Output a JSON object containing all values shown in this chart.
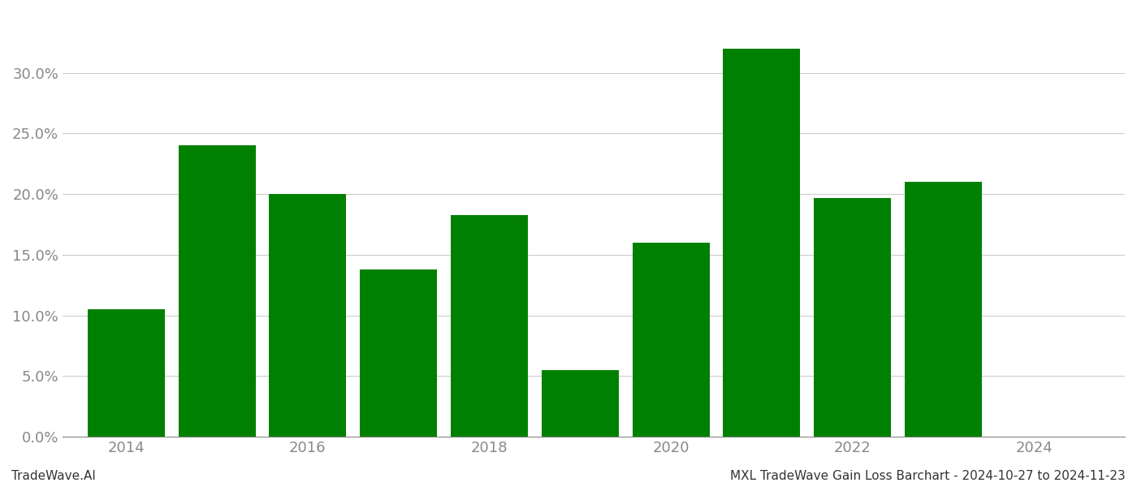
{
  "years": [
    2014,
    2015,
    2016,
    2017,
    2018,
    2019,
    2020,
    2021,
    2022,
    2023,
    2024
  ],
  "values": [
    0.105,
    0.24,
    0.2,
    0.138,
    0.183,
    0.055,
    0.16,
    0.32,
    0.197,
    0.21,
    null
  ],
  "bar_color": "#008000",
  "background_color": "#ffffff",
  "grid_color": "#cccccc",
  "axis_color": "#888888",
  "tick_color": "#888888",
  "ylim": [
    0,
    0.35
  ],
  "yticks": [
    0.0,
    0.05,
    0.1,
    0.15,
    0.2,
    0.25,
    0.3
  ],
  "xtick_years": [
    2014,
    2016,
    2018,
    2020,
    2022,
    2024
  ],
  "xlim_left": 2013.3,
  "xlim_right": 2025.0,
  "footer_left": "TradeWave.AI",
  "footer_right": "MXL TradeWave Gain Loss Barchart - 2024-10-27 to 2024-11-23",
  "footer_fontsize": 11,
  "tick_fontsize": 13,
  "bar_width": 0.85
}
